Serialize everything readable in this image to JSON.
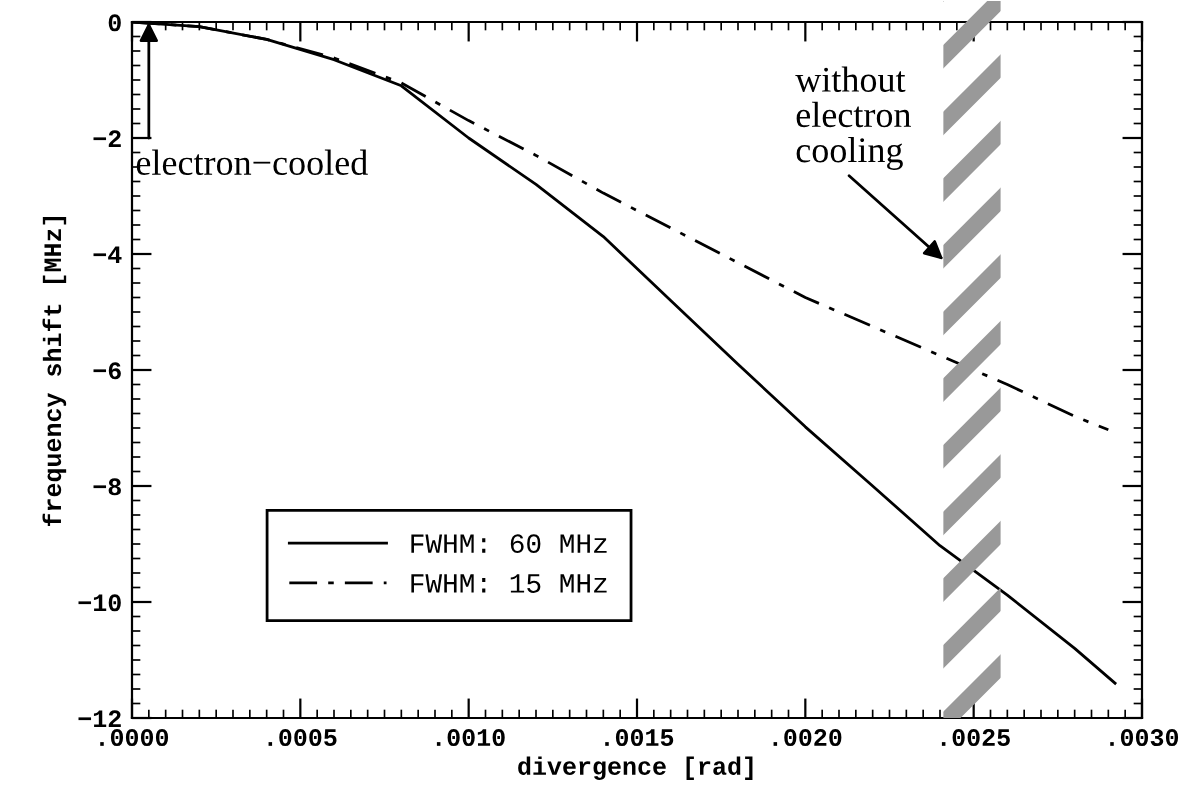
{
  "chart_data": {
    "type": "line",
    "xlabel": "divergence [rad]",
    "ylabel": "frequency shift [MHz]",
    "xlim": [
      0,
      0.003
    ],
    "ylim": [
      -12,
      0
    ],
    "xticks": [
      {
        "value": 0,
        "label": ".0000"
      },
      {
        "value": 0.0005,
        "label": ".0005"
      },
      {
        "value": 0.001,
        "label": ".0010"
      },
      {
        "value": 0.0015,
        "label": ".0015"
      },
      {
        "value": 0.002,
        "label": ".0020"
      },
      {
        "value": 0.0025,
        "label": ".0025"
      },
      {
        "value": 0.003,
        "label": ".0030"
      }
    ],
    "yticks": [
      0,
      {
        "value": -2,
        "label": "−2"
      },
      {
        "value": -4,
        "label": "−4"
      },
      {
        "value": -6,
        "label": "−6"
      },
      {
        "value": -8,
        "label": "−8"
      },
      {
        "value": -10,
        "label": "−10"
      },
      {
        "value": -12,
        "label": "−12"
      }
    ],
    "series": [
      {
        "name": "FWHM: 60 MHz",
        "color": "#000000",
        "line_style": "solid",
        "x": [
          0,
          0.0002,
          0.0004,
          0.0006,
          0.0008,
          0.001,
          0.0012,
          0.0014,
          0.0016,
          0.0018,
          0.002,
          0.0022,
          0.0024,
          0.0026,
          0.0028,
          0.00292
        ],
        "values": [
          0,
          -0.08,
          -0.3,
          -0.65,
          -1.1,
          -2.0,
          -2.8,
          -3.7,
          -4.8,
          -5.9,
          -6.98,
          -8.0,
          -9.03,
          -9.88,
          -10.8,
          -11.4
        ]
      },
      {
        "name": "FWHM: 15 MHz",
        "color": "#000000",
        "line_style": "dashdot",
        "x": [
          0,
          0.0002,
          0.0004,
          0.0006,
          0.0008,
          0.001,
          0.0012,
          0.0014,
          0.0016,
          0.0018,
          0.002,
          0.0022,
          0.0024,
          0.0026,
          0.0028,
          0.0029
        ],
        "values": [
          0,
          -0.08,
          -0.3,
          -0.62,
          -1.05,
          -1.7,
          -2.3,
          -2.95,
          -3.55,
          -4.15,
          -4.75,
          -5.25,
          -5.75,
          -6.25,
          -6.8,
          -7.03
        ]
      }
    ],
    "bands": [
      {
        "axis": "x",
        "from": 0.00241,
        "to": 0.00258,
        "color": "#999999"
      }
    ],
    "annotations": [
      {
        "text": "electron−cooled",
        "x": 5e-05,
        "y": 0
      },
      {
        "text": "without\nelectron\ncooling",
        "x": 0.00241,
        "y": -4.1
      }
    ],
    "legend": "bottom left",
    "grid": false
  }
}
